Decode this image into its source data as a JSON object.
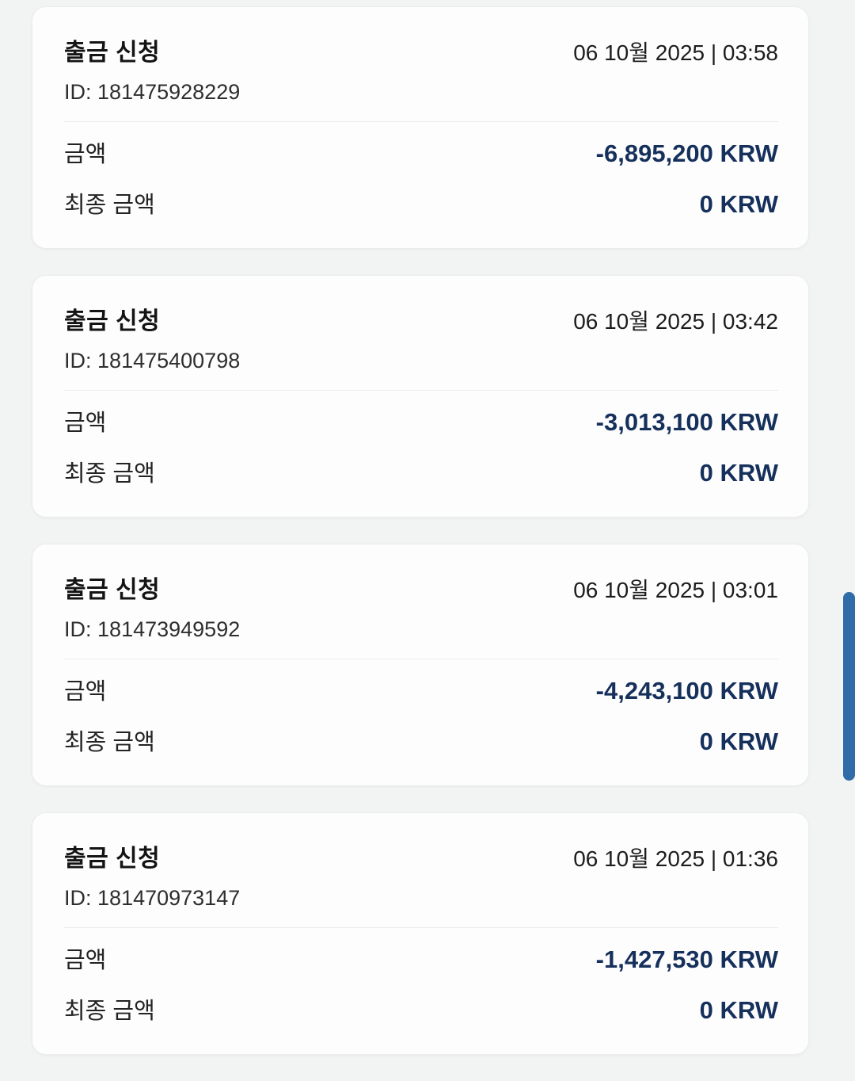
{
  "page": {
    "background_color": "#f2f3f3",
    "card_background_color": "#fdfdfd",
    "amount_text_color": "#16305c",
    "scrollbar_color": "#306da8"
  },
  "cards": [
    {
      "title": "출금 신청",
      "datetime": "06 10월 2025 | 03:58",
      "id_label": "ID:",
      "id_value": "181475928229",
      "amount_label": "금액",
      "amount_value": "-6,895,200 KRW",
      "final_label": "최종 금액",
      "final_value": "0 KRW"
    },
    {
      "title": "출금 신청",
      "datetime": "06 10월 2025 | 03:42",
      "id_label": "ID:",
      "id_value": "181475400798",
      "amount_label": "금액",
      "amount_value": "-3,013,100 KRW",
      "final_label": "최종 금액",
      "final_value": "0 KRW"
    },
    {
      "title": "출금 신청",
      "datetime": "06 10월 2025 | 03:01",
      "id_label": "ID:",
      "id_value": "181473949592",
      "amount_label": "금액",
      "amount_value": "-4,243,100 KRW",
      "final_label": "최종 금액",
      "final_value": "0 KRW"
    },
    {
      "title": "출금 신청",
      "datetime": "06 10월 2025 | 01:36",
      "id_label": "ID:",
      "id_value": "181470973147",
      "amount_label": "금액",
      "amount_value": "-1,427,530 KRW",
      "final_label": "최종 금액",
      "final_value": "0 KRW"
    }
  ]
}
